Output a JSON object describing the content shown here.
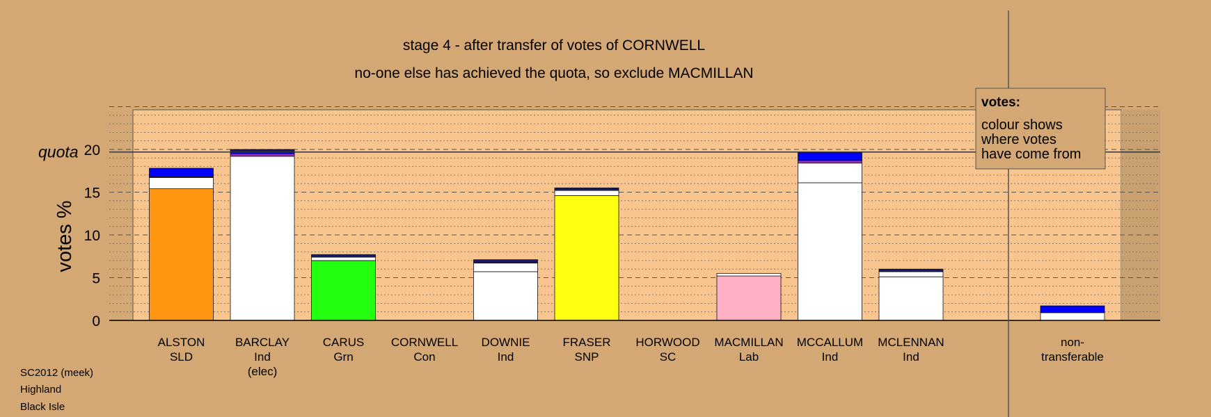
{
  "chart_data": {
    "type": "bar",
    "title": "stage 4 - after transfer of votes of CORNWELL",
    "subtitle": "no-one else has achieved the quota, so exclude MACMILLAN",
    "ylabel": "votes %",
    "ylim": [
      0,
      25
    ],
    "yticks": [
      "0",
      "5",
      "10",
      "15",
      "20"
    ],
    "quota": 19.7,
    "quota_label": "quota",
    "legend": {
      "heading": "votes:",
      "lines": [
        "colour shows",
        "where votes",
        "have come from"
      ]
    },
    "footnote": [
      "SC2012 (meek)",
      "Highland",
      "Black Isle"
    ],
    "candidates": [
      {
        "name": "ALSTON",
        "party": "SLD",
        "extra": "",
        "segments": [
          {
            "value": 15.4,
            "color": "#ff9511"
          },
          {
            "value": 1.3,
            "color": "#ffffff"
          },
          {
            "value": 0.1,
            "color": "#9b30c0"
          },
          {
            "value": 1.0,
            "color": "#0000ff"
          }
        ]
      },
      {
        "name": "BARCLAY",
        "party": "Ind",
        "extra": "(elec)",
        "segments": [
          {
            "value": 19.2,
            "color": "#ffffff"
          },
          {
            "value": 0.3,
            "color": "#9b30c0"
          },
          {
            "value": 0.2,
            "color": "#0000ff"
          },
          {
            "value": 0.3,
            "color": "#1a1a66"
          }
        ]
      },
      {
        "name": "CARUS",
        "party": "Grn",
        "extra": "",
        "segments": [
          {
            "value": 7.0,
            "color": "#22ff11"
          },
          {
            "value": 0.4,
            "color": "#ffffff"
          },
          {
            "value": 0.3,
            "color": "#1a1a66"
          }
        ]
      },
      {
        "name": "CORNWELL",
        "party": "Con",
        "extra": "",
        "segments": []
      },
      {
        "name": "DOWNIE",
        "party": "Ind",
        "extra": "",
        "segments": [
          {
            "value": 5.7,
            "color": "#ffffff"
          },
          {
            "value": 1.0,
            "color": "#ffffff"
          },
          {
            "value": 0.1,
            "color": "#9b30c0"
          },
          {
            "value": 0.3,
            "color": "#1a1a66"
          }
        ]
      },
      {
        "name": "FRASER",
        "party": "SNP",
        "extra": "",
        "segments": [
          {
            "value": 14.6,
            "color": "#ffff11"
          },
          {
            "value": 0.6,
            "color": "#ffffff"
          },
          {
            "value": 0.3,
            "color": "#1a1a66"
          }
        ]
      },
      {
        "name": "HORWOOD",
        "party": "SC",
        "extra": "",
        "segments": []
      },
      {
        "name": "MACMILLAN",
        "party": "Lab",
        "extra": "",
        "segments": [
          {
            "value": 5.2,
            "color": "#ffb0c4"
          },
          {
            "value": 0.3,
            "color": "#ffffff"
          }
        ]
      },
      {
        "name": "MCCALLUM",
        "party": "Ind",
        "extra": "",
        "segments": [
          {
            "value": 16.1,
            "color": "#ffffff"
          },
          {
            "value": 2.3,
            "color": "#ffffff"
          },
          {
            "value": 0.3,
            "color": "#9b30c0"
          },
          {
            "value": 0.9,
            "color": "#0000ff"
          }
        ]
      },
      {
        "name": "MCLENNAN",
        "party": "Ind",
        "extra": "",
        "segments": [
          {
            "value": 5.1,
            "color": "#ffffff"
          },
          {
            "value": 0.6,
            "color": "#ffffff"
          },
          {
            "value": 0.3,
            "color": "#1a1a66"
          }
        ]
      }
    ],
    "nontransferable": {
      "label_line1": "non-",
      "label_line2": "transferable",
      "segments": [
        {
          "value": 0.9,
          "color": "#ffffff"
        },
        {
          "value": 0.8,
          "color": "#0000ff"
        }
      ]
    }
  }
}
